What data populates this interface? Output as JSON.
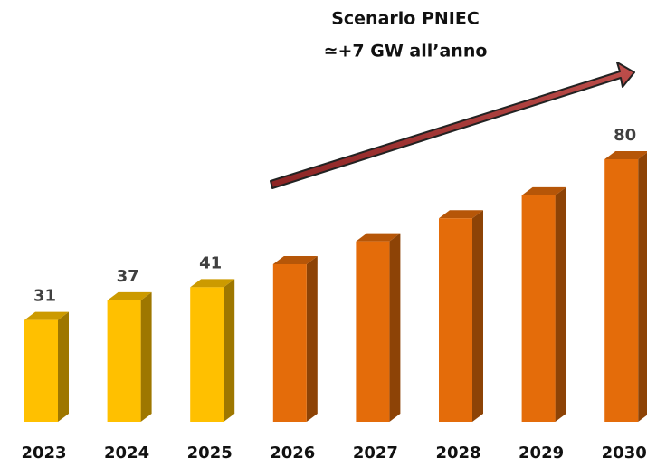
{
  "chart_data": {
    "type": "bar3d",
    "annotation": [
      "Scenario PNIEC",
      "≃+7 GW all’anno"
    ],
    "categories": [
      "2023",
      "2024",
      "2025",
      "2026",
      "2027",
      "2028",
      "2029",
      "2030"
    ],
    "values": [
      31,
      37,
      41,
      48,
      55,
      62,
      69,
      80
    ],
    "value_labels": [
      "31",
      "37",
      "41",
      null,
      null,
      null,
      null,
      "80"
    ],
    "colors": [
      "#ffc000",
      "#ffc000",
      "#ffc000",
      "#e46c0a",
      "#e46c0a",
      "#e46c0a",
      "#e46c0a",
      "#e46c0a"
    ],
    "ylim": [
      0,
      80
    ]
  }
}
